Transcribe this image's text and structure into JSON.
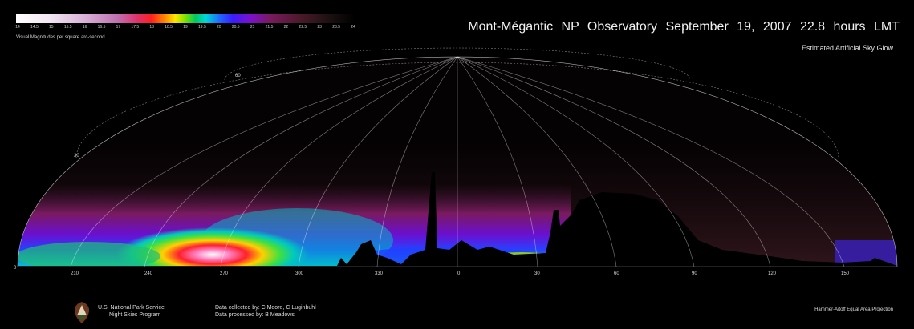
{
  "colorbar": {
    "ticks": [
      "14",
      "14.5",
      "15",
      "15.5",
      "16",
      "16.5",
      "17",
      "17.5",
      "18",
      "18.5",
      "19",
      "19.5",
      "20",
      "20.5",
      "21",
      "21.5",
      "22",
      "22.5",
      "23",
      "23.5",
      "24"
    ],
    "label": "Visual Magnitudes per square arc-second"
  },
  "header": {
    "title": "Mont-Mégantic NP  Observatory   September 19, 2007   22.8 hours LMT",
    "subtitle": "Estimated Artificial Sky Glow"
  },
  "map": {
    "azimuth_labels": [
      "210",
      "240",
      "270",
      "300",
      "330",
      "0",
      "30",
      "60",
      "90",
      "120",
      "150"
    ],
    "altitude_labels": [
      "60",
      "30",
      "0"
    ]
  },
  "footer": {
    "nps_line1": "U.S. National Park Service",
    "nps_line2": "Night Skies Program",
    "credit_collected": "Data collected by: C Moore, C Luginbuhl",
    "credit_processed": "Data processed by: B Meadows",
    "projection": "Hammer-Aitoff Equal Area Projection"
  }
}
